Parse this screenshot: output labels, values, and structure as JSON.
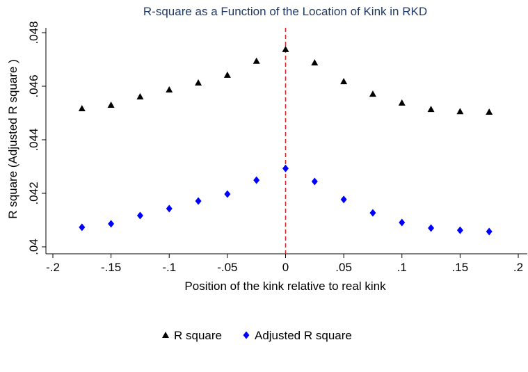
{
  "chart_data": {
    "type": "scatter",
    "title": "R-square as a Function of the Location of Kink in RKD",
    "x_label": "Position of the kink relative to real kink",
    "y_label": "R square (Adjusted R square )",
    "x": [
      -0.175,
      -0.15,
      -0.125,
      -0.1,
      -0.075,
      -0.05,
      -0.025,
      0,
      0.025,
      0.05,
      0.075,
      0.1,
      0.125,
      0.15,
      0.175
    ],
    "series": [
      {
        "name": "R square",
        "color": "#000000",
        "marker": "triangle",
        "values": [
          0.04517,
          0.0453,
          0.04561,
          0.04587,
          0.04613,
          0.04642,
          0.04694,
          0.04738,
          0.04688,
          0.04618,
          0.04571,
          0.04538,
          0.04514,
          0.04506,
          0.04504
        ]
      },
      {
        "name": "Adjusted R square",
        "color": "#0000ff",
        "marker": "diamond",
        "values": [
          0.04073,
          0.04086,
          0.04117,
          0.04143,
          0.04171,
          0.04197,
          0.04249,
          0.04293,
          0.04244,
          0.04177,
          0.04127,
          0.04091,
          0.0407,
          0.04062,
          0.04057
        ]
      }
    ],
    "xlim": [
      -0.2,
      0.2
    ],
    "xticks": [
      {
        "value": -0.2,
        "label": "-.2"
      },
      {
        "value": -0.15,
        "label": "-.15"
      },
      {
        "value": -0.1,
        "label": "-.1"
      },
      {
        "value": -0.05,
        "label": "-.05"
      },
      0,
      {
        "value": 0.05,
        "label": ".05"
      },
      {
        "value": 0.1,
        "label": ".1"
      },
      {
        "value": 0.15,
        "label": ".15"
      },
      {
        "value": 0.2,
        "label": ".2"
      }
    ],
    "ylim": [
      0.04,
      0.048
    ],
    "yticks": [
      {
        "value": 0.04,
        "label": ".04"
      },
      {
        "value": 0.042,
        "label": ".042"
      },
      {
        "value": 0.044,
        "label": ".044"
      },
      {
        "value": 0.046,
        "label": ".046"
      },
      {
        "value": 0.048,
        "label": ".048"
      }
    ],
    "reference_line": {
      "x": 0,
      "color": "#d62728"
    },
    "grid": false,
    "legend_position": "bottom"
  }
}
